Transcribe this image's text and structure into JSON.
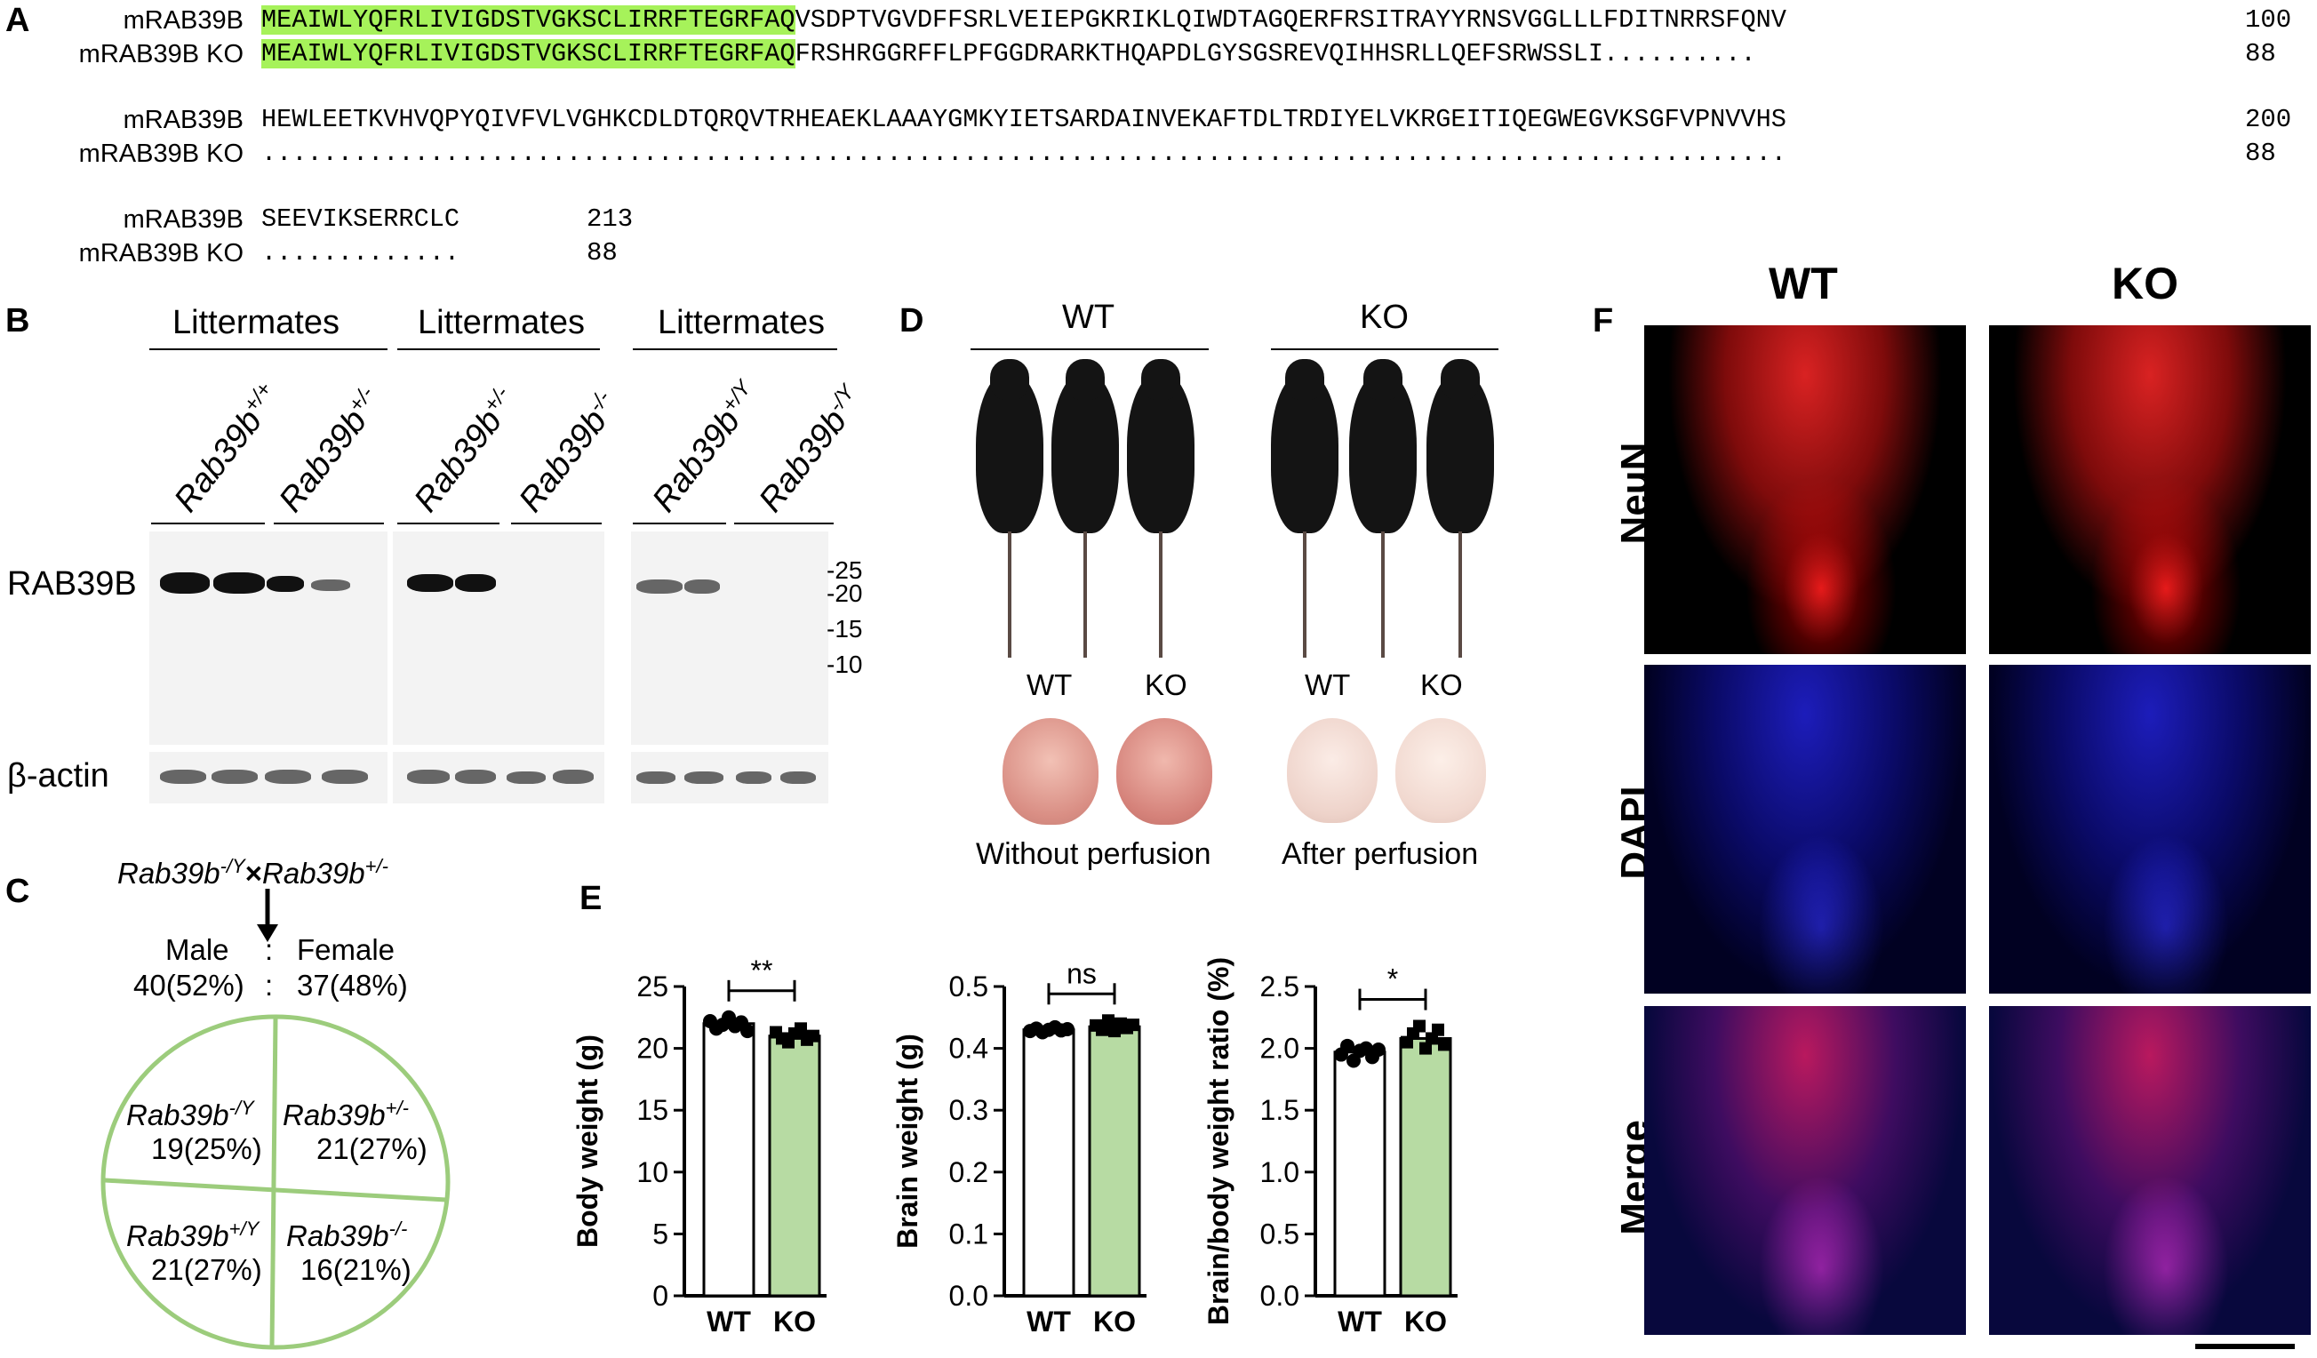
{
  "panel_labels": {
    "a": "A",
    "b": "B",
    "c": "C",
    "d": "D",
    "e": "E",
    "f": "F"
  },
  "panel_a": {
    "blocks": [
      {
        "rows": [
          {
            "name": "mRAB39B",
            "hl": "MEAIWLYQFRLIVIGDSTVGKSCLIRRFTEGRFAQ",
            "rest": "VSDPTVGVDFFSRLVEIEPGKRIKLQIWDTAGQERFRSITRAYYRNSVGGLLLFDITNRRSFQNV",
            "num": "100"
          },
          {
            "name": "mRAB39B KO",
            "hl": "MEAIWLYQFRLIVIGDSTVGKSCLIRRFTEGRFAQ",
            "rest": "FRSHRGGRFFLPFGGDRARKTHQAPDLGYSGSREVQIHHSRLLQEFSRWSSLI..........",
            "num": "88"
          }
        ]
      },
      {
        "rows": [
          {
            "name": "mRAB39B",
            "hl": "",
            "rest": "HEWLEETKVHVQPYQIVFVLVGHKCDLDTQRQVTRHEAEKLAAAYGMKYIETSARDAINVEKAFTDLTRDIYELVKRGEITIQEGWEGVKSGFVPNVVHS",
            "num": "200"
          },
          {
            "name": "mRAB39B KO",
            "hl": "",
            "rest": "....................................................................................................",
            "num": "88"
          }
        ]
      },
      {
        "rows": [
          {
            "name": "mRAB39B",
            "hl": "",
            "rest": "SEEVIKSERRCLC",
            "num": "213"
          },
          {
            "name": "mRAB39B KO",
            "hl": "",
            "rest": ".............",
            "num": "88"
          }
        ]
      }
    ]
  },
  "panel_b": {
    "group_title": "Littermates",
    "genotypes": [
      {
        "base": "Rab39b",
        "sup": "+/+"
      },
      {
        "base": "Rab39b",
        "sup": "+/-"
      },
      {
        "base": "Rab39b",
        "sup": "+/-"
      },
      {
        "base": "Rab39b",
        "sup": "-/-"
      },
      {
        "base": "Rab39b",
        "sup": "+/Y"
      },
      {
        "base": "Rab39b",
        "sup": "-/Y"
      }
    ],
    "row_labels": {
      "top": "RAB39B",
      "bottom": "β-actin"
    },
    "markers": [
      "-25",
      "-20",
      "-15",
      "-10"
    ]
  },
  "panel_c": {
    "cross_left": "Rab39b",
    "cross_left_sup": "-/Y",
    "cross_x": "×",
    "cross_right": "Rab39b",
    "cross_right_sup": "+/-",
    "male_label": "Male",
    "colon": ":",
    "female_label": "Female",
    "male_count": "40(52%)",
    "colon2": ":",
    "female_count": "37(48%)",
    "sectors": [
      {
        "base": "Rab39b",
        "sup": "-/Y",
        "count": "19(25%)"
      },
      {
        "base": "Rab39b",
        "sup": "+/-",
        "count": "21(27%)"
      },
      {
        "base": "Rab39b",
        "sup": "+/Y",
        "count": "21(27%)"
      },
      {
        "base": "Rab39b",
        "sup": "-/-",
        "count": "16(21%)"
      }
    ],
    "circle_color": "#9ccc7c"
  },
  "panel_d": {
    "wt_title": "WT",
    "ko_title": "KO",
    "brain_labels": {
      "wt1": "WT",
      "ko1": "KO",
      "wt2": "WT",
      "ko2": "KO"
    },
    "caption_left": "Without perfusion",
    "caption_right": "After perfusion"
  },
  "panel_e": {
    "charts": [
      {
        "ylabel": "Body weight (g)",
        "yticks": [
          "0",
          "5",
          "10",
          "15",
          "20",
          "25"
        ],
        "sig": "**"
      },
      {
        "ylabel": "Brain weight (g)",
        "yticks": [
          "0.0",
          "0.1",
          "0.2",
          "0.3",
          "0.4",
          "0.5"
        ],
        "sig": "ns"
      },
      {
        "ylabel": "Brain/body weight ratio (%)",
        "yticks": [
          "0.0",
          "0.5",
          "1.0",
          "1.5",
          "2.0",
          "2.5"
        ],
        "sig": "*"
      }
    ],
    "xlabels": [
      "WT",
      "KO"
    ]
  },
  "chart_data": [
    {
      "type": "bar",
      "categories": [
        "WT",
        "KO"
      ],
      "values": [
        22.0,
        21.0
      ],
      "ylabel": "Body weight (g)",
      "ylim": [
        0,
        25
      ],
      "points": {
        "WT": [
          22.2,
          21.6,
          21.9,
          22.5,
          21.8,
          22.1,
          21.4
        ],
        "KO": [
          21.3,
          20.8,
          20.5,
          21.2,
          21.6,
          20.7,
          21.0
        ]
      },
      "significance": "**",
      "colors": [
        "#ffffff",
        "#b7dba3"
      ]
    },
    {
      "type": "bar",
      "categories": [
        "WT",
        "KO"
      ],
      "values": [
        0.43,
        0.435
      ],
      "ylabel": "Brain weight (g)",
      "ylim": [
        0,
        0.5
      ],
      "points": {
        "WT": [
          0.428,
          0.432,
          0.426,
          0.43,
          0.434,
          0.429,
          0.431
        ],
        "KO": [
          0.437,
          0.43,
          0.445,
          0.428,
          0.44,
          0.433,
          0.438
        ]
      },
      "significance": "ns",
      "colors": [
        "#ffffff",
        "#b7dba3"
      ]
    },
    {
      "type": "bar",
      "categories": [
        "WT",
        "KO"
      ],
      "values": [
        1.97,
        2.08
      ],
      "ylabel": "Brain/body weight ratio (%)",
      "ylim": [
        0,
        2.5
      ],
      "points": {
        "WT": [
          1.95,
          2.02,
          1.9,
          1.98,
          2.0,
          1.93,
          1.99
        ],
        "KO": [
          2.05,
          2.12,
          2.18,
          2.0,
          2.08,
          2.15,
          2.03
        ]
      },
      "significance": "*",
      "colors": [
        "#ffffff",
        "#b7dba3"
      ]
    }
  ],
  "panel_f": {
    "col_labels": [
      "WT",
      "KO"
    ],
    "row_labels": [
      "NeuN",
      "DAPI",
      "Merge"
    ]
  }
}
